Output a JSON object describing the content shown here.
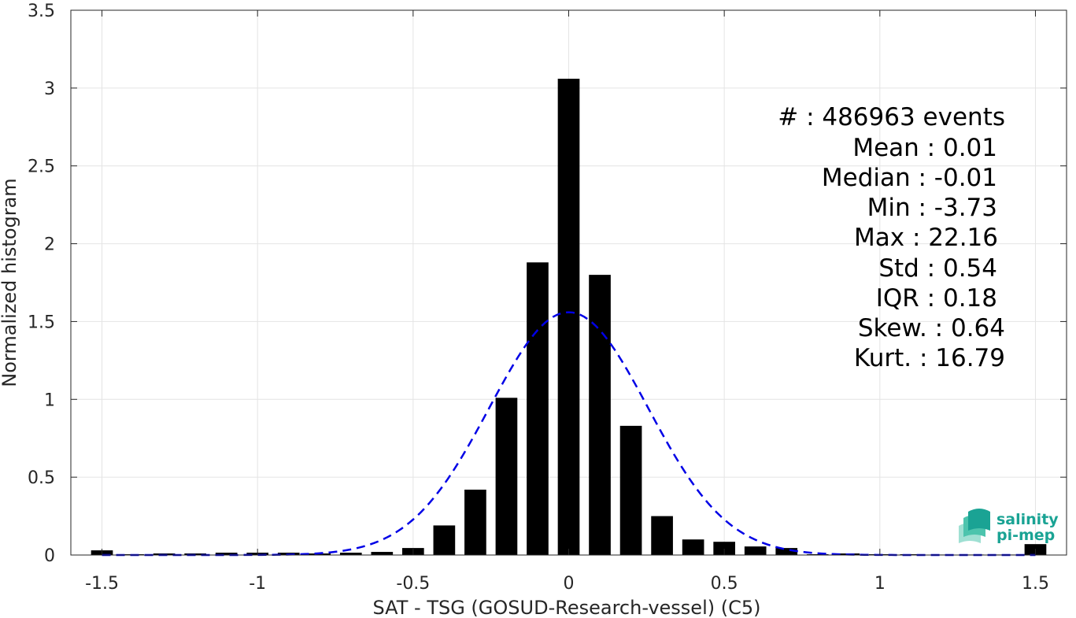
{
  "chart_data": {
    "type": "bar",
    "xlabel": "SAT - TSG (GOSUD-Research-vessel) (C5)",
    "ylabel": "Normalized histogram",
    "xlim": [
      -1.6,
      1.6
    ],
    "ylim": [
      0,
      3.5
    ],
    "xticks": [
      -1.5,
      -1,
      -0.5,
      0,
      0.5,
      1,
      1.5
    ],
    "xtick_labels": [
      "-1.5",
      "-1",
      "-0.5",
      "0",
      "0.5",
      "1",
      "1.5"
    ],
    "yticks": [
      0,
      0.5,
      1,
      1.5,
      2,
      2.5,
      3,
      3.5
    ],
    "ytick_labels": [
      "0",
      "0.5",
      "1",
      "1.5",
      "2",
      "2.5",
      "3",
      "3.5"
    ],
    "grid": true,
    "bar_width": 0.07,
    "bar_color": "#000000",
    "bars": {
      "x": [
        -1.5,
        -1.4,
        -1.3,
        -1.2,
        -1.1,
        -1.0,
        -0.9,
        -0.8,
        -0.7,
        -0.6,
        -0.5,
        -0.4,
        -0.3,
        -0.2,
        -0.1,
        0.0,
        0.1,
        0.2,
        0.3,
        0.4,
        0.5,
        0.6,
        0.7,
        0.8,
        0.9,
        1.0,
        1.1,
        1.2,
        1.3,
        1.4,
        1.5
      ],
      "values": [
        0.03,
        0.005,
        0.01,
        0.01,
        0.015,
        0.015,
        0.015,
        0.01,
        0.015,
        0.02,
        0.045,
        0.19,
        0.42,
        1.01,
        1.88,
        3.06,
        1.8,
        0.83,
        0.25,
        0.1,
        0.085,
        0.055,
        0.045,
        0.005,
        0.01,
        0.005,
        0.005,
        0.003,
        0.003,
        0.003,
        0.07
      ]
    },
    "fit_curve": {
      "type": "gaussian",
      "mean": 0.0,
      "std": 0.255,
      "peak": 1.56,
      "color": "#0000e6",
      "style": "dashed",
      "x_range": [
        -1.5,
        1.5
      ]
    }
  },
  "stats": {
    "events": "#  : 486963 events",
    "mean": "Mean : 0.01",
    "median": "Median : -0.01",
    "min": "Min : -3.73",
    "max": "Max : 22.16",
    "std": "Std : 0.54",
    "iqr": "IQR : 0.18",
    "skew": "Skew. : 0.64",
    "kurt": "Kurt. : 16.79"
  },
  "logo": {
    "line1": "salinity",
    "line2": "pi-mep",
    "color": "#1aa394"
  }
}
